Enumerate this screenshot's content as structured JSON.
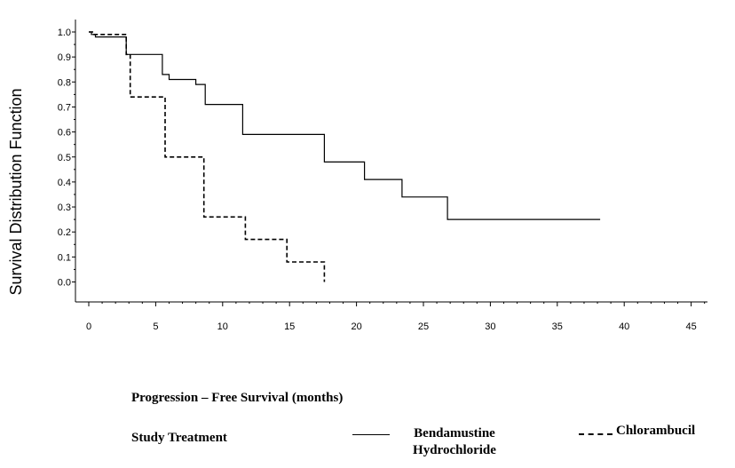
{
  "chart_data": {
    "type": "line",
    "title": "",
    "xlabel": "Progression – Free Survival (months)",
    "ylabel": "Survival Distribution Function",
    "xlim": [
      0,
      46
    ],
    "ylim": [
      -0.05,
      1.07
    ],
    "x_ticks": [
      0,
      5,
      10,
      15,
      20,
      25,
      30,
      35,
      40,
      45
    ],
    "y_ticks": [
      "0.0",
      "0.1",
      "0.2",
      "0.3",
      "0.4",
      "0.5",
      "0.6",
      "0.7",
      "0.8",
      "0.9",
      "1.0"
    ],
    "grid": false,
    "legend_title": "Study Treatment",
    "legend_position": "bottom",
    "series": [
      {
        "name": "Bendamustine Hydrochloride",
        "style": "solid",
        "color": "#000000",
        "points": [
          [
            0,
            1.0
          ],
          [
            0.2,
            1.0
          ],
          [
            0.2,
            0.99
          ],
          [
            0.5,
            0.99
          ],
          [
            0.5,
            0.98
          ],
          [
            2.8,
            0.98
          ],
          [
            2.8,
            0.91
          ],
          [
            5.5,
            0.91
          ],
          [
            5.5,
            0.83
          ],
          [
            6.0,
            0.83
          ],
          [
            6.0,
            0.81
          ],
          [
            8.0,
            0.81
          ],
          [
            8.0,
            0.79
          ],
          [
            8.7,
            0.79
          ],
          [
            8.7,
            0.71
          ],
          [
            11.5,
            0.71
          ],
          [
            11.5,
            0.59
          ],
          [
            17.6,
            0.59
          ],
          [
            17.6,
            0.48
          ],
          [
            20.6,
            0.48
          ],
          [
            20.6,
            0.41
          ],
          [
            23.4,
            0.41
          ],
          [
            23.4,
            0.34
          ],
          [
            26.8,
            0.34
          ],
          [
            26.8,
            0.25
          ],
          [
            38.2,
            0.25
          ]
        ]
      },
      {
        "name": "Chlorambucil",
        "style": "dashed",
        "color": "#000000",
        "points": [
          [
            0,
            1.0
          ],
          [
            0.4,
            1.0
          ],
          [
            0.4,
            0.99
          ],
          [
            2.8,
            0.99
          ],
          [
            2.8,
            0.91
          ],
          [
            3.1,
            0.91
          ],
          [
            3.1,
            0.74
          ],
          [
            5.7,
            0.74
          ],
          [
            5.7,
            0.5
          ],
          [
            8.6,
            0.5
          ],
          [
            8.6,
            0.26
          ],
          [
            11.7,
            0.26
          ],
          [
            11.7,
            0.17
          ],
          [
            14.8,
            0.17
          ],
          [
            14.8,
            0.08
          ],
          [
            17.6,
            0.08
          ],
          [
            17.6,
            0.0
          ]
        ]
      }
    ]
  },
  "legend": {
    "title": "Study Treatment",
    "item_a_line1": "Bendamustine",
    "item_a_line2": "Hydrochloride",
    "item_b": "Chlorambucil"
  }
}
